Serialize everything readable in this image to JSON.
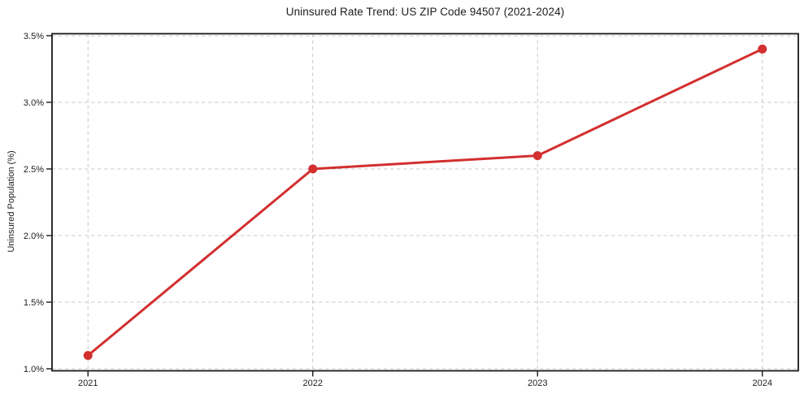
{
  "chart_data": {
    "type": "line",
    "title": "Uninsured Rate Trend: US ZIP Code 94507 (2021-2024)",
    "xlabel": "",
    "ylabel": "Uninsured Population (%)",
    "categories": [
      "2021",
      "2022",
      "2023",
      "2024"
    ],
    "x": [
      2021,
      2022,
      2023,
      2024
    ],
    "values": [
      1.1,
      2.5,
      2.6,
      3.4
    ],
    "y_ticks": [
      1.0,
      1.5,
      2.0,
      2.5,
      3.0,
      3.5
    ],
    "y_tick_labels": [
      "1.0%",
      "1.5%",
      "2.0%",
      "2.5%",
      "3.0%",
      "3.5%"
    ],
    "ylim": [
      0.985,
      3.515
    ],
    "xlim": [
      2020.84,
      2024.16
    ],
    "grid": true,
    "grid_line_style": "dashed",
    "legend_position": "none",
    "colors": {
      "line": "#d32f2f",
      "marker": "#d32f2f",
      "grid": "#c9c9c9",
      "spine": "#1a1a1a",
      "text": "#1c1c1c",
      "background": "#ffffff"
    }
  }
}
